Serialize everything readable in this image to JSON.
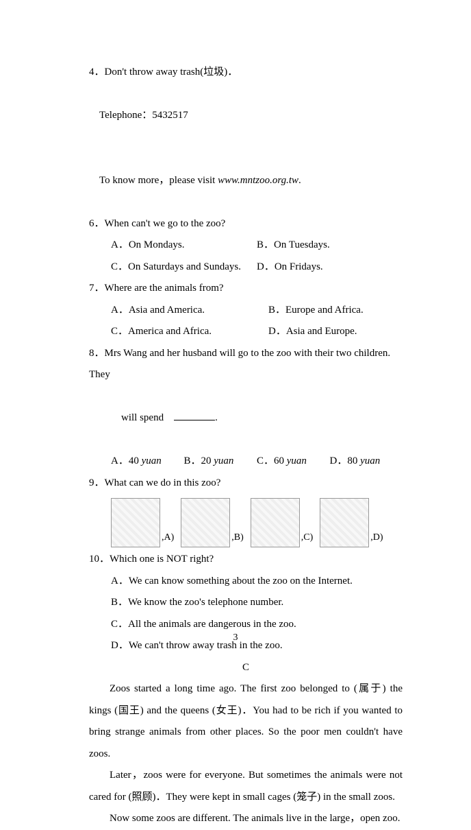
{
  "intro": {
    "rule4": "4．Don't throw away trash(垃圾)．",
    "telephone_label": "Telephone：",
    "telephone_number": "5432517",
    "more_prefix": "To know more，please visit ",
    "more_link": "www.mntzoo.org.tw",
    "more_suffix": "."
  },
  "q6": {
    "stem": "6．When can't we go to the zoo?",
    "A": "A．On Mondays.",
    "B": "B．On Tuesdays.",
    "C": "C．On Saturdays and Sundays.",
    "D": "D．On Fridays."
  },
  "q7": {
    "stem": "7．Where are the animals from?",
    "A": "A．Asia and America.",
    "B": "B．Europe and Africa.",
    "C": "C．America and Africa.",
    "D": "D．Asia and Europe."
  },
  "q8": {
    "stem_l1": "8．Mrs Wang and her husband will go to the zoo with their two children. They",
    "stem_l2_prefix": "will spend　",
    "stem_l2_suffix": ".",
    "A_pre": "A．40 ",
    "A_it": "yuan",
    "B_pre": "B．20 ",
    "B_it": "yuan",
    "C_pre": "C．60 ",
    "C_it": "yuan",
    "D_pre": "D．80 ",
    "D_it": "yuan"
  },
  "q9": {
    "stem": "9．What can we do in this zoo?",
    "labels": {
      "A": ",A)",
      "B": ",B)",
      "C": ",C)",
      "D": ",D)"
    }
  },
  "q10": {
    "stem": "10．Which one is NOT right?",
    "A": "A．We can know something about the zoo on the Internet.",
    "B": "B．We know the zoo's telephone number.",
    "C": "C．All the animals are dangerous in the zoo.",
    "D": "D．We can't throw away trash in the zoo."
  },
  "sectionC": {
    "heading": "C",
    "p1": "Zoos started a long time ago. The first zoo belonged to (属于) the kings (国王) and the queens (女王)．You had to be rich if you wanted to bring strange animals from other places. So the poor men couldn't have zoos.",
    "p2": "Later，zoos were for everyone. But sometimes the animals were not cared for (照顾)．They were kept in small cages (笼子) in the small zoos.",
    "p3": "Now some zoos are different. The animals live in the large，open zoo."
  },
  "page_number": "3"
}
